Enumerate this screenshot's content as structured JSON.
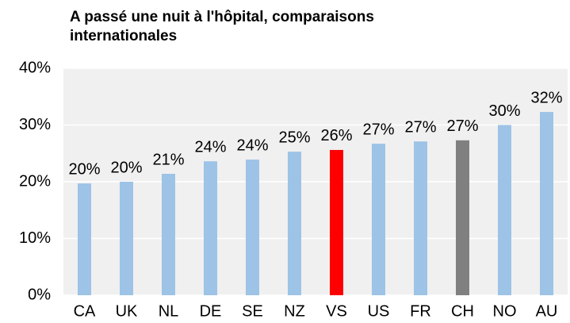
{
  "chart_data": {
    "type": "bar",
    "title": "A passé une nuit à l'hôpital, comparaisons internationales",
    "categories": [
      "CA",
      "UK",
      "NL",
      "DE",
      "SE",
      "NZ",
      "VS",
      "US",
      "FR",
      "CH",
      "NO",
      "AU"
    ],
    "values": [
      19.7,
      20.0,
      21.4,
      23.6,
      23.9,
      25.3,
      25.6,
      26.7,
      27.1,
      27.3,
      30.0,
      32.3
    ],
    "value_labels": [
      "20%",
      "20%",
      "21%",
      "24%",
      "24%",
      "25%",
      "26%",
      "27%",
      "27%",
      "27%",
      "30%",
      "32%"
    ],
    "colors": [
      "#9dc3e6",
      "#9dc3e6",
      "#9dc3e6",
      "#9dc3e6",
      "#9dc3e6",
      "#9dc3e6",
      "#ff0000",
      "#9dc3e6",
      "#9dc3e6",
      "#808080",
      "#9dc3e6",
      "#9dc3e6"
    ],
    "ylim": [
      0,
      40
    ],
    "yticks": [
      {
        "value": 0,
        "label": "0%"
      },
      {
        "value": 10,
        "label": "10%"
      },
      {
        "value": 20,
        "label": "20%"
      },
      {
        "value": 30,
        "label": "30%"
      },
      {
        "value": 40,
        "label": "40%"
      }
    ],
    "grid": true
  }
}
